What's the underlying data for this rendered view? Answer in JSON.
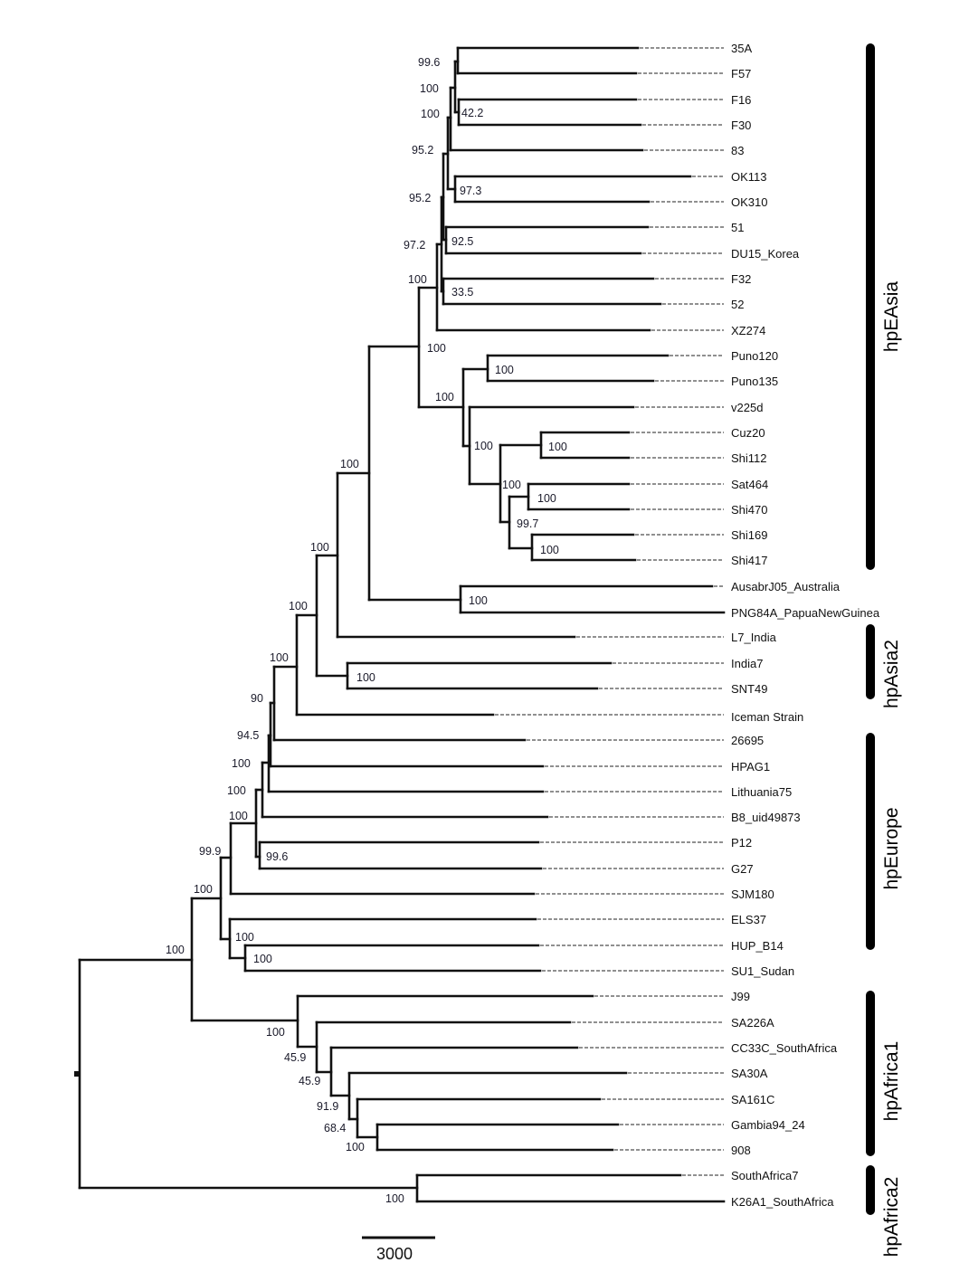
{
  "leaves": [
    "35A",
    "F57",
    "F16",
    "F30",
    "83",
    "OK113",
    "OK310",
    "51",
    "DU15_Korea",
    "F32",
    "52",
    "XZ274",
    "Puno120",
    "Puno135",
    "v225d",
    "Cuz20",
    "Shi112",
    "Sat464",
    "Shi470",
    "Shi169",
    "Shi417",
    "AusabrJ05_Australia",
    "PNG84A_PapuaNewGuinea",
    "L7_India",
    "India7",
    "SNT49",
    "Iceman Strain",
    "26695",
    "HPAG1",
    "Lithuania75",
    "B8_uid49873",
    "P12",
    "G27",
    "SJM180",
    "ELS37",
    "HUP_B14",
    "SU1_Sudan",
    "J99",
    "SA226A",
    "CC33C_SouthAfrica",
    "SA30A",
    "SA161C",
    "Gambia94_24",
    "908",
    "SouthAfrica7",
    "K26A1_SouthAfrica"
  ],
  "bootstrap": [
    "99.6",
    "100",
    "100",
    "42.2",
    "95.2",
    "97.3",
    "95.2",
    "92.5",
    "97.2",
    "100",
    "33.5",
    "100",
    "100",
    "100",
    "100",
    "100",
    "100",
    "100",
    "99.7",
    "100",
    "100",
    "100",
    "100",
    "100",
    "100",
    "100",
    "90",
    "94.5",
    "100",
    "100",
    "100",
    "99.9",
    "99.6",
    "100",
    "100",
    "100",
    "100",
    "100",
    "45.9",
    "45.9",
    "91.9",
    "68.4",
    "100",
    "100"
  ],
  "clades": [
    "hpEAsia",
    "hpAsia2",
    "hpEurope",
    "hpAfrica1",
    "hpAfrica2"
  ],
  "scale_bar": {
    "label": "3000"
  }
}
